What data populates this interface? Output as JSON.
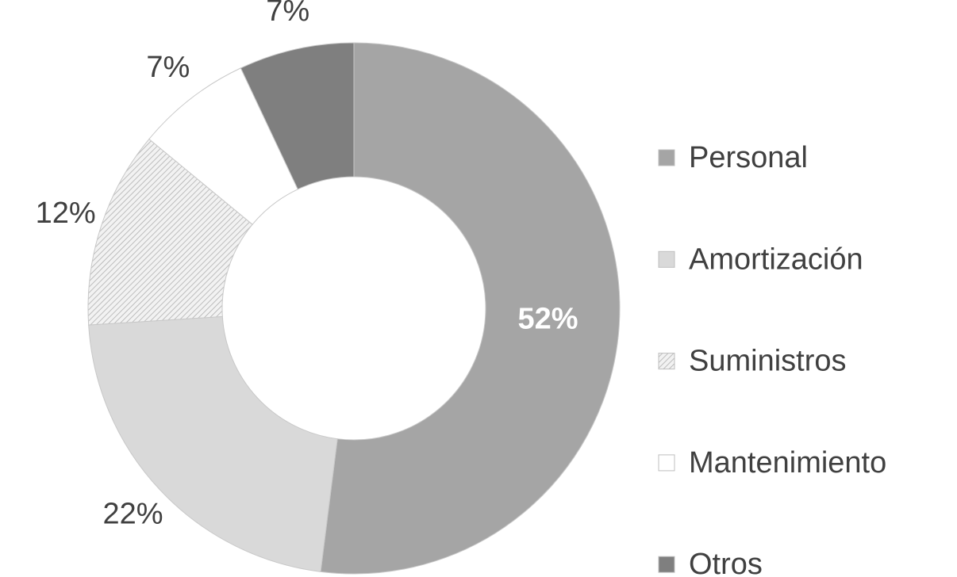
{
  "chart_data": {
    "type": "donut",
    "categories": [
      "Personal",
      "Amortización",
      "Suministros",
      "Mantenimiento",
      "Otros"
    ],
    "values": [
      52,
      22,
      12,
      7,
      7
    ],
    "value_labels": [
      "52%",
      "22%",
      "12%",
      "7%",
      "7%"
    ],
    "colors": [
      "#a5a5a5",
      "#d9d9d9",
      "#d0d0d0",
      "#ffffff",
      "#7f7f7f"
    ],
    "hatched": [
      false,
      false,
      true,
      false,
      false
    ],
    "legend": "right"
  }
}
